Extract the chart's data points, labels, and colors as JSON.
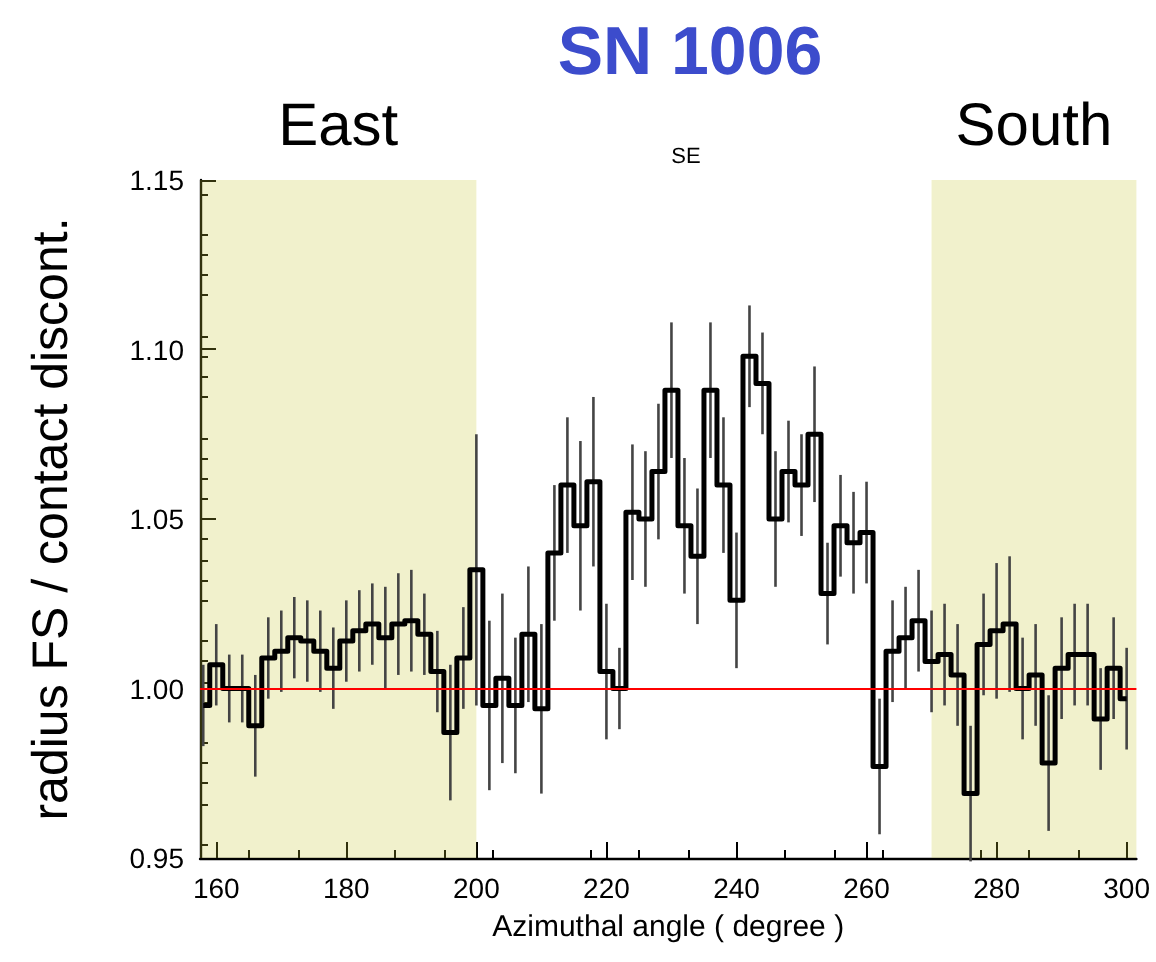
{
  "chart_data": {
    "type": "step",
    "title": "SN 1006",
    "subtitle": "SE",
    "xlabel": "Azimuthal angle ( degree )",
    "ylabel": "radius FS / contact discont.",
    "x": [
      158,
      160,
      162,
      164,
      166,
      168,
      170,
      172,
      174,
      176,
      178,
      180,
      182,
      184,
      186,
      188,
      190,
      192,
      194,
      196,
      198,
      200,
      202,
      204,
      206,
      208,
      210,
      212,
      214,
      216,
      218,
      220,
      222,
      224,
      226,
      228,
      230,
      232,
      234,
      236,
      238,
      240,
      242,
      244,
      246,
      248,
      250,
      252,
      254,
      256,
      258,
      260,
      262,
      264,
      266,
      268,
      270,
      272,
      274,
      276,
      278,
      280,
      282,
      284,
      286,
      288,
      290,
      292,
      294,
      296,
      298,
      300
    ],
    "values": [
      0.995,
      1.007,
      1.0,
      1.0,
      0.989,
      1.009,
      1.011,
      1.015,
      1.014,
      1.011,
      1.006,
      1.014,
      1.017,
      1.019,
      1.015,
      1.019,
      1.02,
      1.016,
      1.005,
      0.987,
      1.009,
      1.035,
      0.995,
      1.003,
      0.995,
      1.016,
      0.994,
      1.04,
      1.06,
      1.048,
      1.061,
      1.005,
      1.0,
      1.052,
      1.05,
      1.064,
      1.088,
      1.048,
      1.039,
      1.088,
      1.06,
      1.026,
      1.098,
      1.09,
      1.05,
      1.064,
      1.06,
      1.075,
      1.028,
      1.048,
      1.043,
      1.046,
      0.977,
      1.011,
      1.015,
      1.02,
      1.008,
      1.01,
      1.004,
      0.969,
      1.013,
      1.017,
      1.019,
      1.0,
      1.004,
      0.978,
      1.006,
      1.01,
      1.01,
      0.991,
      1.006,
      0.997
    ],
    "errors": [
      0.012,
      0.012,
      0.01,
      0.01,
      0.015,
      0.012,
      0.012,
      0.012,
      0.012,
      0.012,
      0.012,
      0.012,
      0.012,
      0.012,
      0.015,
      0.015,
      0.015,
      0.012,
      0.012,
      0.02,
      0.015,
      0.04,
      0.025,
      0.025,
      0.02,
      0.02,
      0.025,
      0.02,
      0.02,
      0.025,
      0.025,
      0.02,
      0.012,
      0.02,
      0.02,
      0.02,
      0.02,
      0.02,
      0.02,
      0.02,
      0.02,
      0.02,
      0.015,
      0.015,
      0.02,
      0.015,
      0.015,
      0.02,
      0.015,
      0.015,
      0.015,
      0.015,
      0.02,
      0.015,
      0.015,
      0.015,
      0.015,
      0.015,
      0.015,
      0.02,
      0.015,
      0.02,
      0.02,
      0.015,
      0.015,
      0.02,
      0.015,
      0.015,
      0.015,
      0.015,
      0.015,
      0.015
    ],
    "color": "#000000",
    "marker": "none",
    "line_style": "solid",
    "grid": false,
    "xlim": [
      157.5,
      301.5
    ],
    "xticks": [
      160,
      180,
      200,
      220,
      240,
      260,
      280,
      300
    ],
    "ylim": [
      0.95,
      1.15
    ],
    "yticks": [
      {
        "value": 0.95,
        "label": "0.95"
      },
      {
        "value": 1.0,
        "label": "1.00"
      },
      {
        "value": 1.05,
        "label": "1.05"
      },
      {
        "value": 1.1,
        "label": "1.10"
      },
      {
        "value": 1.15,
        "label": "1.15"
      }
    ],
    "ref_lines": [
      {
        "axis": "y",
        "value": 1.0,
        "label": null,
        "color": "#ff0000"
      }
    ],
    "bands": [
      {
        "axis": "x",
        "from": 157.5,
        "to": 200,
        "label": "East",
        "color": "#c8c832"
      },
      {
        "axis": "x",
        "from": 270,
        "to": 301.5,
        "label": "South",
        "color": "#c8c832"
      }
    ]
  }
}
